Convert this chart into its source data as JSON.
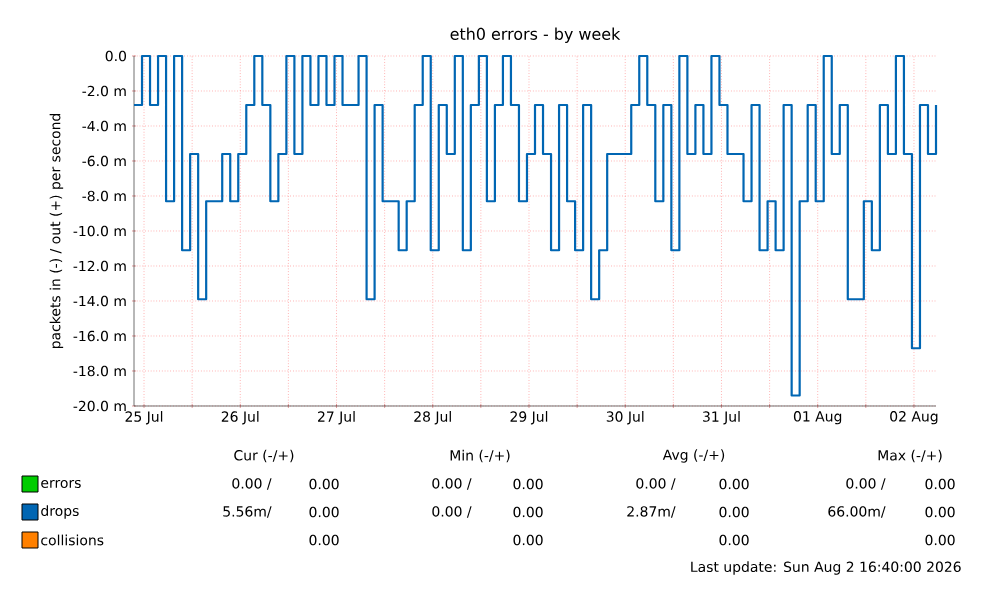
{
  "chart_data": {
    "type": "step",
    "title": "eth0 errors - by week",
    "ylabel": "packets in (-) / out (+) per second",
    "xlim": [
      "2026-07-25T09:30",
      "2026-08-02T17:30"
    ],
    "xticks": [
      {
        "value": "2026-07-25T12:00",
        "label": "25 Jul"
      },
      {
        "value": "2026-07-26T00:00",
        "label": null
      },
      {
        "value": "2026-07-26T12:00",
        "label": "26 Jul"
      },
      {
        "value": "2026-07-27T00:00",
        "label": null
      },
      {
        "value": "2026-07-27T12:00",
        "label": "27 Jul"
      },
      {
        "value": "2026-07-28T00:00",
        "label": null
      },
      {
        "value": "2026-07-28T12:00",
        "label": "28 Jul"
      },
      {
        "value": "2026-07-29T00:00",
        "label": null
      },
      {
        "value": "2026-07-29T12:00",
        "label": "29 Jul"
      },
      {
        "value": "2026-07-30T00:00",
        "label": null
      },
      {
        "value": "2026-07-30T12:00",
        "label": "30 Jul"
      },
      {
        "value": "2026-07-31T00:00",
        "label": null
      },
      {
        "value": "2026-07-31T12:00",
        "label": "31 Jul"
      },
      {
        "value": "2026-08-01T00:00",
        "label": null
      },
      {
        "value": "2026-08-01T12:00",
        "label": "01 Aug"
      },
      {
        "value": "2026-08-02T00:00",
        "label": null
      },
      {
        "value": "2026-08-02T12:00",
        "label": "02 Aug"
      }
    ],
    "ylim": [
      -20,
      0
    ],
    "yticks": [
      {
        "value": -20,
        "label": "-20.0 m"
      },
      {
        "value": -18,
        "label": "-18.0 m"
      },
      {
        "value": -16,
        "label": "-16.0 m"
      },
      {
        "value": -14,
        "label": "-14.0 m"
      },
      {
        "value": -12,
        "label": "-12.0 m"
      },
      {
        "value": -10,
        "label": "-10.0 m"
      },
      {
        "value": -8,
        "label": "-8.0 m"
      },
      {
        "value": -6,
        "label": "-6.0 m"
      },
      {
        "value": -4,
        "label": "-4.0 m"
      },
      {
        "value": -2,
        "label": "-2.0 m"
      },
      {
        "value": 0,
        "label": "0.0"
      }
    ],
    "grid": true,
    "legend": "bottom left",
    "series": [
      {
        "name": "errors",
        "color": "#00cc00"
      },
      {
        "name": "drops",
        "color": "#0066b3",
        "x": [
          "2026-07-25T09:30",
          "2026-07-25T11:30",
          "2026-07-25T13:30",
          "2026-07-25T15:30",
          "2026-07-25T17:30",
          "2026-07-25T19:30",
          "2026-07-25T21:30",
          "2026-07-25T23:30",
          "2026-07-26T01:30",
          "2026-07-26T03:30",
          "2026-07-26T05:30",
          "2026-07-26T07:30",
          "2026-07-26T09:30",
          "2026-07-26T11:30",
          "2026-07-26T13:30",
          "2026-07-26T15:30",
          "2026-07-26T17:30",
          "2026-07-26T19:30",
          "2026-07-26T21:30",
          "2026-07-26T23:30",
          "2026-07-27T01:30",
          "2026-07-27T03:30",
          "2026-07-27T05:30",
          "2026-07-27T07:30",
          "2026-07-27T09:30",
          "2026-07-27T11:30",
          "2026-07-27T13:30",
          "2026-07-27T15:30",
          "2026-07-27T17:30",
          "2026-07-27T19:30",
          "2026-07-27T21:30",
          "2026-07-27T23:30",
          "2026-07-28T01:30",
          "2026-07-28T03:30",
          "2026-07-28T05:30",
          "2026-07-28T07:30",
          "2026-07-28T09:30",
          "2026-07-28T11:30",
          "2026-07-28T13:30",
          "2026-07-28T15:30",
          "2026-07-28T17:30",
          "2026-07-28T19:30",
          "2026-07-28T21:30",
          "2026-07-28T23:30",
          "2026-07-29T01:30",
          "2026-07-29T03:30",
          "2026-07-29T05:30",
          "2026-07-29T07:30",
          "2026-07-29T09:30",
          "2026-07-29T11:30",
          "2026-07-29T13:30",
          "2026-07-29T15:30",
          "2026-07-29T17:30",
          "2026-07-29T19:30",
          "2026-07-29T21:30",
          "2026-07-29T23:30",
          "2026-07-30T01:30",
          "2026-07-30T03:30",
          "2026-07-30T05:30",
          "2026-07-30T07:30",
          "2026-07-30T09:30",
          "2026-07-30T11:30",
          "2026-07-30T13:30",
          "2026-07-30T15:30",
          "2026-07-30T17:30",
          "2026-07-30T19:30",
          "2026-07-30T21:30",
          "2026-07-30T23:30",
          "2026-07-31T01:30",
          "2026-07-31T03:30",
          "2026-07-31T05:30",
          "2026-07-31T07:30",
          "2026-07-31T09:30",
          "2026-07-31T11:30",
          "2026-07-31T13:30",
          "2026-07-31T15:30",
          "2026-07-31T17:30",
          "2026-07-31T19:30",
          "2026-07-31T21:30",
          "2026-07-31T23:30",
          "2026-08-01T01:30",
          "2026-08-01T03:30",
          "2026-08-01T05:30",
          "2026-08-01T07:30",
          "2026-08-01T09:30",
          "2026-08-01T11:30",
          "2026-08-01T13:30",
          "2026-08-01T15:30",
          "2026-08-01T17:30",
          "2026-08-01T19:30",
          "2026-08-01T21:30",
          "2026-08-01T23:30",
          "2026-08-02T01:30",
          "2026-08-02T03:30",
          "2026-08-02T05:30",
          "2026-08-02T07:30",
          "2026-08-02T09:30",
          "2026-08-02T11:30",
          "2026-08-02T13:30",
          "2026-08-02T15:30",
          "2026-08-02T17:30"
        ],
        "values": [
          -2.8,
          0,
          -2.8,
          0,
          -8.3,
          0,
          -11.1,
          -5.6,
          -13.9,
          -8.3,
          -8.3,
          -5.6,
          -8.3,
          -5.6,
          -2.8,
          0,
          -2.8,
          -8.3,
          -5.6,
          0,
          -5.6,
          0,
          -2.8,
          0,
          -2.8,
          0,
          -2.8,
          -2.8,
          0,
          -13.9,
          -2.8,
          -8.3,
          -8.3,
          -11.1,
          -8.3,
          -2.8,
          0,
          -11.1,
          -2.8,
          -5.6,
          0,
          -11.1,
          -2.8,
          0,
          -8.3,
          -2.8,
          0,
          -2.8,
          -8.3,
          -5.6,
          -2.8,
          -5.6,
          -11.1,
          -2.8,
          -8.3,
          -11.1,
          -2.8,
          -13.9,
          -11.1,
          -5.6,
          -5.6,
          -5.6,
          -2.8,
          0,
          -2.8,
          -8.3,
          -2.8,
          -11.1,
          0,
          -5.6,
          -2.8,
          -5.6,
          0,
          -2.8,
          -5.6,
          -5.6,
          -8.3,
          -2.8,
          -11.1,
          -8.3,
          -11.1,
          -2.8,
          -19.4,
          -8.3,
          -2.8,
          -8.3,
          0,
          -5.6,
          -2.8,
          -13.9,
          -13.9,
          -8.3,
          -11.1,
          -2.8,
          -5.6,
          0,
          -5.6,
          -16.7,
          -2.8,
          -5.6,
          -2.8
        ]
      },
      {
        "name": "collisions",
        "color": "#ff8000"
      }
    ],
    "annotations": [
      "Cur (-/+)",
      "Min (-/+)",
      "Avg (-/+)",
      "Max (-/+)",
      "0.00 /",
      "0.00",
      "0.00 /",
      "0.00",
      "0.00 /",
      "0.00",
      "0.00 /",
      "0.00",
      "5.56m/",
      "0.00",
      "0.00 /",
      "0.00",
      "2.87m/",
      "0.00",
      "66.00m/",
      "0.00",
      "0.00",
      "0.00",
      "0.00",
      "0.00",
      "Last update: Sun Aug  2 16:40:00 2026"
    ]
  }
}
